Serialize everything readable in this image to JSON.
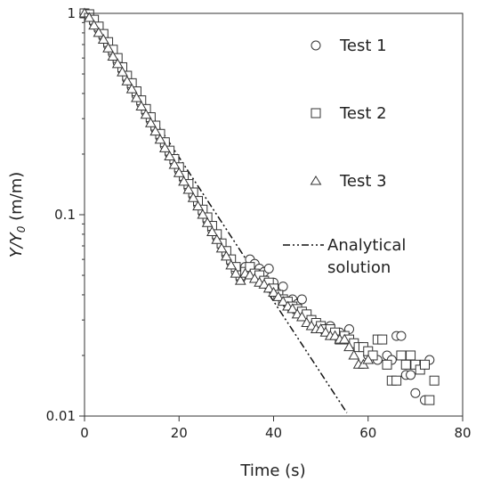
{
  "chart_data": {
    "type": "scatter",
    "title": "",
    "xlabel": "Time (s)",
    "ylabel_main": "Y/Y",
    "ylabel_sub": "0",
    "ylabel_unit": " (m/m)",
    "xlim": [
      0,
      80
    ],
    "ylim": [
      0.01,
      1
    ],
    "yscale": "log",
    "xticks": [
      0,
      20,
      40,
      60,
      80
    ],
    "xtick_labels": [
      "0",
      "20",
      "40",
      "60",
      "80"
    ],
    "yticks": [
      0.01,
      0.1,
      1
    ],
    "ytick_labels": [
      "0.01",
      "0.1",
      "1"
    ],
    "grid": false,
    "legend_position": "top-right",
    "series": [
      {
        "name": "Test 1",
        "marker": "circle",
        "x": [
          0,
          1,
          2,
          3,
          4,
          5,
          6,
          7,
          8,
          9,
          10,
          11,
          12,
          13,
          14,
          15,
          16,
          17,
          18,
          19,
          20,
          21,
          22,
          23,
          24,
          25,
          26,
          27,
          28,
          29,
          30,
          31,
          32,
          33,
          34,
          35,
          36,
          37,
          38,
          39,
          40,
          41,
          42,
          43,
          44,
          45,
          46,
          48,
          50,
          52,
          54,
          56,
          58,
          60,
          62,
          64,
          65,
          66,
          67,
          68,
          69,
          70,
          72,
          73
        ],
        "y": [
          1.0,
          0.97,
          0.9,
          0.83,
          0.76,
          0.69,
          0.63,
          0.57,
          0.52,
          0.47,
          0.43,
          0.39,
          0.355,
          0.322,
          0.293,
          0.266,
          0.242,
          0.22,
          0.2,
          0.182,
          0.165,
          0.15,
          0.136,
          0.124,
          0.112,
          0.102,
          0.093,
          0.084,
          0.077,
          0.07,
          0.063,
          0.058,
          0.052,
          0.048,
          0.055,
          0.06,
          0.057,
          0.054,
          0.052,
          0.054,
          0.046,
          0.041,
          0.044,
          0.036,
          0.038,
          0.036,
          0.038,
          0.03,
          0.028,
          0.028,
          0.026,
          0.027,
          0.022,
          0.02,
          0.019,
          0.02,
          0.019,
          0.025,
          0.025,
          0.016,
          0.016,
          0.013,
          0.012,
          0.019
        ]
      },
      {
        "name": "Test 2",
        "marker": "square",
        "x": [
          0,
          1,
          2,
          3,
          4,
          5,
          6,
          7,
          8,
          9,
          10,
          11,
          12,
          13,
          14,
          15,
          16,
          17,
          18,
          19,
          20,
          21,
          22,
          23,
          24,
          25,
          26,
          27,
          28,
          29,
          30,
          31,
          32,
          33,
          34,
          35,
          36,
          37,
          38,
          39,
          40,
          41,
          42,
          43,
          44,
          45,
          46,
          47,
          48,
          49,
          50,
          51,
          52,
          53,
          54,
          55,
          56,
          57,
          58,
          59,
          60,
          61,
          62,
          63,
          64,
          65,
          66,
          67,
          68,
          69,
          70,
          71,
          72,
          73,
          74
        ],
        "y": [
          1.0,
          0.99,
          0.93,
          0.86,
          0.79,
          0.72,
          0.66,
          0.6,
          0.54,
          0.49,
          0.45,
          0.41,
          0.37,
          0.335,
          0.305,
          0.277,
          0.252,
          0.229,
          0.208,
          0.189,
          0.172,
          0.156,
          0.142,
          0.129,
          0.117,
          0.106,
          0.097,
          0.088,
          0.08,
          0.072,
          0.066,
          0.06,
          0.055,
          0.05,
          0.052,
          0.055,
          0.051,
          0.05,
          0.047,
          0.046,
          0.043,
          0.04,
          0.038,
          0.037,
          0.035,
          0.034,
          0.033,
          0.032,
          0.03,
          0.029,
          0.028,
          0.027,
          0.027,
          0.026,
          0.024,
          0.025,
          0.024,
          0.023,
          0.022,
          0.022,
          0.021,
          0.02,
          0.024,
          0.024,
          0.018,
          0.015,
          0.015,
          0.02,
          0.018,
          0.02,
          0.018,
          0.017,
          0.018,
          0.012,
          0.015
        ]
      },
      {
        "name": "Test 3",
        "marker": "triangle",
        "x": [
          0,
          1,
          2,
          3,
          4,
          5,
          6,
          7,
          8,
          9,
          10,
          11,
          12,
          13,
          14,
          15,
          16,
          17,
          18,
          19,
          20,
          21,
          22,
          23,
          24,
          25,
          26,
          27,
          28,
          29,
          30,
          31,
          32,
          33,
          34,
          35,
          36,
          37,
          38,
          39,
          40,
          41,
          42,
          43,
          44,
          45,
          46,
          47,
          48,
          49,
          50,
          51,
          52,
          53,
          54,
          55,
          56,
          57,
          58,
          59,
          60
        ],
        "y": [
          1.0,
          0.95,
          0.87,
          0.8,
          0.74,
          0.67,
          0.61,
          0.56,
          0.51,
          0.46,
          0.42,
          0.38,
          0.345,
          0.314,
          0.285,
          0.259,
          0.236,
          0.214,
          0.195,
          0.177,
          0.161,
          0.146,
          0.133,
          0.121,
          0.11,
          0.1,
          0.091,
          0.082,
          0.075,
          0.068,
          0.062,
          0.056,
          0.051,
          0.047,
          0.051,
          0.05,
          0.048,
          0.046,
          0.045,
          0.043,
          0.041,
          0.039,
          0.037,
          0.035,
          0.034,
          0.032,
          0.031,
          0.029,
          0.028,
          0.027,
          0.027,
          0.026,
          0.025,
          0.025,
          0.024,
          0.024,
          0.022,
          0.02,
          0.018,
          0.018,
          0.019
        ]
      }
    ],
    "analytical": {
      "name_line1": "Analytical",
      "name_line2": "solution",
      "style": "dash-dot-dot",
      "y0": 1.0,
      "decay_per_s": 0.0823,
      "x_range": [
        0,
        56
      ]
    }
  }
}
